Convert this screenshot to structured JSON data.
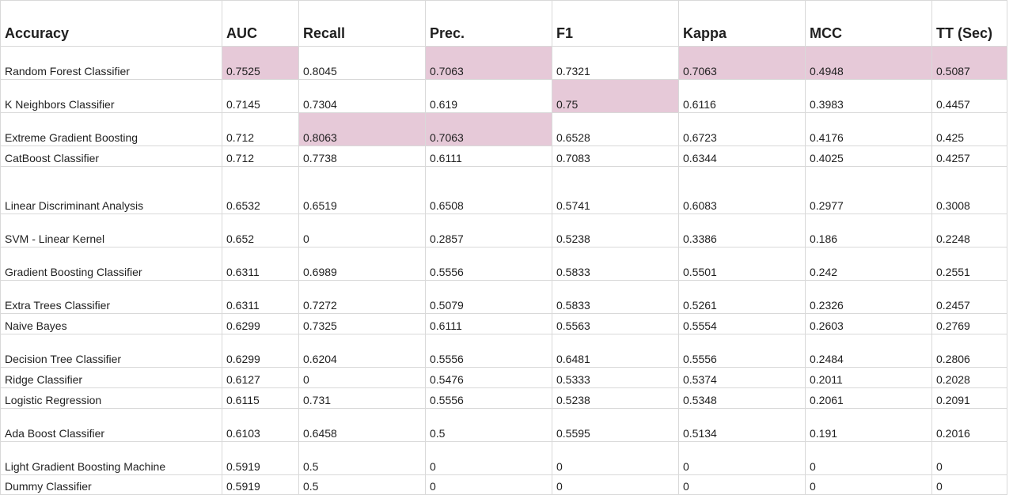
{
  "table": {
    "headers": [
      "Accuracy",
      "AUC",
      "Recall",
      "Prec.",
      "F1",
      "Kappa",
      "MCC",
      "TT (Sec)"
    ],
    "rows": [
      {
        "cells": [
          "Random Forest Classifier",
          "0.7525",
          "0.8045",
          "0.7063",
          "0.7321",
          "0.7063",
          "0.4948",
          "0.5087"
        ],
        "highlight": [
          1,
          3,
          5,
          6,
          7
        ]
      },
      {
        "cells": [
          "K Neighbors Classifier",
          "0.7145",
          "0.7304",
          "0.619",
          "0.75",
          "0.6116",
          "0.3983",
          "0.4457"
        ],
        "highlight": [
          4
        ]
      },
      {
        "cells": [
          "Extreme Gradient Boosting",
          "0.712",
          "0.8063",
          "0.7063",
          "0.6528",
          "0.6723",
          "0.4176",
          "0.425"
        ],
        "highlight": [
          2,
          3
        ]
      },
      {
        "cells": [
          "CatBoost Classifier",
          "0.712",
          "0.7738",
          "0.6111",
          "0.7083",
          "0.6344",
          "0.4025",
          "0.4257"
        ],
        "highlight": []
      },
      {
        "cells": [
          "Linear Discriminant Analysis",
          "0.6532",
          "0.6519",
          "0.6508",
          "0.5741",
          "0.6083",
          "0.2977",
          "0.3008"
        ],
        "highlight": []
      },
      {
        "cells": [
          "SVM - Linear Kernel",
          "0.652",
          "0",
          "0.2857",
          "0.5238",
          "0.3386",
          "0.186",
          "0.2248"
        ],
        "highlight": []
      },
      {
        "cells": [
          "Gradient Boosting Classifier",
          "0.6311",
          "0.6989",
          "0.5556",
          "0.5833",
          "0.5501",
          "0.242",
          "0.2551"
        ],
        "highlight": []
      },
      {
        "cells": [
          "Extra Trees Classifier",
          "0.6311",
          "0.7272",
          "0.5079",
          "0.5833",
          "0.5261",
          "0.2326",
          "0.2457"
        ],
        "highlight": []
      },
      {
        "cells": [
          "Naive Bayes",
          "0.6299",
          "0.7325",
          "0.6111",
          "0.5563",
          "0.5554",
          "0.2603",
          "0.2769"
        ],
        "highlight": []
      },
      {
        "cells": [
          "Decision Tree Classifier",
          "0.6299",
          "0.6204",
          "0.5556",
          "0.6481",
          "0.5556",
          "0.2484",
          "0.2806"
        ],
        "highlight": []
      },
      {
        "cells": [
          "Ridge Classifier",
          "0.6127",
          "0",
          "0.5476",
          "0.5333",
          "0.5374",
          "0.2011",
          "0.2028"
        ],
        "highlight": []
      },
      {
        "cells": [
          "Logistic Regression",
          "0.6115",
          "0.731",
          "0.5556",
          "0.5238",
          "0.5348",
          "0.2061",
          "0.2091"
        ],
        "highlight": []
      },
      {
        "cells": [
          "Ada Boost Classifier",
          "0.6103",
          "0.6458",
          "0.5",
          "0.5595",
          "0.5134",
          "0.191",
          "0.2016"
        ],
        "highlight": []
      },
      {
        "cells": [
          "Light Gradient Boosting Machine",
          "0.5919",
          "0.5",
          "0",
          "0",
          "0",
          "0",
          "0"
        ],
        "highlight": []
      },
      {
        "cells": [
          "Dummy Classifier",
          "0.5919",
          "0.5",
          "0",
          "0",
          "0",
          "0",
          "0"
        ],
        "highlight": []
      }
    ],
    "highlight_color": "#e6c9d8",
    "grid_color": "#d9d9d9"
  }
}
